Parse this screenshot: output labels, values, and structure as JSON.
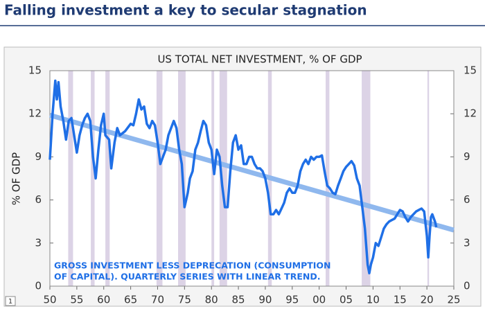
{
  "header": {
    "title": "Falling investment a key to secular stagnation"
  },
  "footer": {
    "page_number": "1"
  },
  "chart_data": {
    "type": "line",
    "title": "US TOTAL NET INVESTMENT, % OF GDP",
    "y_label": "% OF GDP",
    "annotation": [
      "GROSS INVESTMENT LESS DEPRECATION (CONSUMPTION",
      "OF CAPITAL).  QUARTERLY SERIES WITH LINEAR TREND."
    ],
    "xlim": [
      1950,
      2025
    ],
    "xticks": [
      {
        "value": 1950,
        "label": "50"
      },
      {
        "value": 1955,
        "label": "55"
      },
      {
        "value": 1960,
        "label": "60"
      },
      {
        "value": 1965,
        "label": "65"
      },
      {
        "value": 1970,
        "label": "70"
      },
      {
        "value": 1975,
        "label": "75"
      },
      {
        "value": 1980,
        "label": "80"
      },
      {
        "value": 1985,
        "label": "85"
      },
      {
        "value": 1990,
        "label": "90"
      },
      {
        "value": 1995,
        "label": "95"
      },
      {
        "value": 2000,
        "label": "00"
      },
      {
        "value": 2005,
        "label": "05"
      },
      {
        "value": 2010,
        "label": "10"
      },
      {
        "value": 2015,
        "label": "15"
      },
      {
        "value": 2020,
        "label": "20"
      },
      {
        "value": 2025,
        "label": "25"
      }
    ],
    "ylim": [
      0,
      15
    ],
    "yticks": [
      0,
      3,
      6,
      9,
      12,
      15
    ],
    "y2lim": [
      0,
      15
    ],
    "y2ticks": [
      0,
      3,
      6,
      9,
      12,
      15
    ],
    "grid": false,
    "recession_color": "#dcd3e6",
    "recessions": [
      [
        1953.4,
        1954.3
      ],
      [
        1957.6,
        1958.3
      ],
      [
        1960.3,
        1961.1
      ],
      [
        1969.8,
        1970.9
      ],
      [
        1973.8,
        1975.2
      ],
      [
        1980.0,
        1980.5
      ],
      [
        1981.5,
        1982.9
      ],
      [
        1990.5,
        1991.2
      ],
      [
        2001.2,
        2001.9
      ],
      [
        2007.9,
        2009.5
      ],
      [
        2020.1,
        2020.4
      ]
    ],
    "series": [
      {
        "color": "#1f6fe6",
        "x": [
          1950,
          1950.5,
          1951,
          1951.3,
          1951.6,
          1952,
          1952.5,
          1953,
          1953.5,
          1954,
          1954.5,
          1955,
          1955.5,
          1956,
          1956.5,
          1957,
          1957.5,
          1958,
          1958.5,
          1959,
          1959.5,
          1960,
          1960.3,
          1961,
          1961.4,
          1962,
          1962.5,
          1963,
          1964,
          1965,
          1965.5,
          1966,
          1966.5,
          1967,
          1967.5,
          1968,
          1968.5,
          1969,
          1969.5,
          1970,
          1970.5,
          1971,
          1971.5,
          1972,
          1972.5,
          1973,
          1973.5,
          1974,
          1974.5,
          1975,
          1975.3,
          1975.6,
          1976,
          1976.5,
          1977,
          1977.5,
          1978,
          1978.5,
          1979,
          1979.5,
          1980,
          1980.5,
          1981,
          1981.5,
          1982,
          1982.5,
          1983,
          1983.5,
          1984,
          1984.5,
          1985,
          1985.5,
          1986,
          1986.5,
          1987,
          1987.5,
          1988,
          1988.5,
          1989,
          1989.5,
          1990,
          1990.5,
          1991,
          1991.5,
          1992,
          1992.5,
          1993,
          1993.5,
          1994,
          1994.5,
          1995,
          1995.5,
          1996,
          1996.5,
          1997,
          1997.5,
          1998,
          1998.5,
          1999,
          1999.5,
          2000,
          2000.5,
          2001,
          2001.5,
          2002,
          2002.5,
          2003,
          2003.5,
          2004,
          2004.5,
          2005,
          2005.5,
          2006,
          2006.5,
          2007,
          2007.5,
          2008,
          2008.5,
          2009,
          2009.3,
          2009.6,
          2010,
          2010.5,
          2011,
          2011.5,
          2012,
          2012.5,
          2013,
          2013.5,
          2014,
          2014.5,
          2015,
          2015.5,
          2016,
          2016.5,
          2017,
          2017.5,
          2018,
          2018.5,
          2019,
          2019.5,
          2020,
          2020.25,
          2020.5,
          2020.75,
          2021,
          2021.5,
          2021.75
        ],
        "values": [
          8.8,
          12,
          14.3,
          13,
          14.2,
          12.5,
          11.5,
          10.2,
          11.5,
          11.7,
          10.5,
          9.3,
          10.5,
          11.2,
          11.7,
          12,
          11.5,
          9,
          7.5,
          9.5,
          11.2,
          12,
          10.5,
          10.2,
          8.2,
          10,
          11,
          10.5,
          10.8,
          11.3,
          11.2,
          12,
          13,
          12.3,
          12.5,
          11.3,
          11,
          11.5,
          11.2,
          10,
          8.5,
          9,
          9.5,
          10.5,
          11,
          11.5,
          11,
          9.5,
          8.5,
          5.5,
          6,
          6.5,
          7.5,
          8,
          9.5,
          10,
          10.8,
          11.5,
          11.2,
          10,
          9.5,
          7.8,
          9.5,
          9,
          7,
          5.5,
          5.5,
          8,
          10,
          10.5,
          9.5,
          9.8,
          8.5,
          8.5,
          9,
          9,
          8.5,
          8.2,
          8.2,
          8,
          7.5,
          6.5,
          5,
          5,
          5.3,
          5,
          5.4,
          5.8,
          6.5,
          6.8,
          6.5,
          6.5,
          7,
          8,
          8.5,
          8.8,
          8.5,
          9,
          8.8,
          9,
          9,
          9.1,
          8,
          7,
          6.8,
          6.5,
          6.4,
          7,
          7.5,
          8,
          8.3,
          8.5,
          8.7,
          8.4,
          7.5,
          7,
          5.5,
          4,
          1.5,
          0.9,
          1.5,
          2,
          3,
          2.8,
          3.4,
          4,
          4.3,
          4.5,
          4.6,
          4.7,
          5,
          5.3,
          5.2,
          4.8,
          4.5,
          4.8,
          5,
          5.2,
          5.3,
          5.4,
          5.2,
          3.5,
          2,
          3.5,
          4.8,
          5,
          4.5,
          4.1
        ]
      }
    ],
    "trend": {
      "color": "#8fb8ee",
      "x": [
        1950,
        2025
      ],
      "values": [
        11.9,
        3.9
      ]
    }
  }
}
